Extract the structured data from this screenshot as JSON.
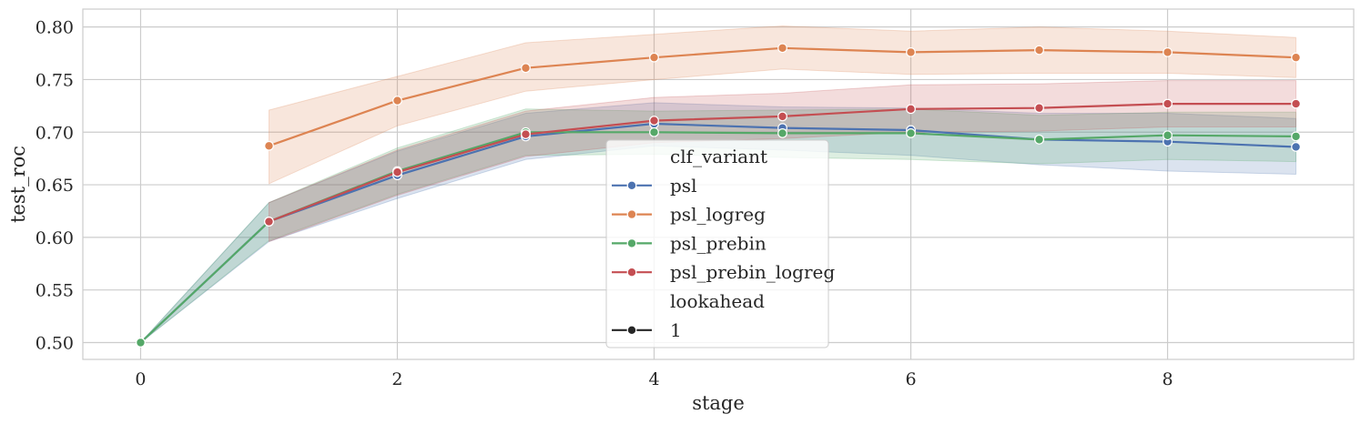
{
  "chart_data": {
    "type": "line",
    "xlabel": "stage",
    "ylabel": "test_roc",
    "xlim": [
      -0.45,
      9.45
    ],
    "ylim": [
      0.484,
      0.817
    ],
    "xticks": [
      0,
      2,
      4,
      6,
      8
    ],
    "xtick_labels": [
      "0",
      "2",
      "4",
      "6",
      "8"
    ],
    "yticks": [
      0.5,
      0.55,
      0.6,
      0.65,
      0.7,
      0.75,
      0.8
    ],
    "ytick_labels": [
      "0.50",
      "0.55",
      "0.60",
      "0.65",
      "0.70",
      "0.75",
      "0.80"
    ],
    "grid": true,
    "legend": {
      "placement": "center",
      "hue_title": "clf_variant",
      "style_title": "lookahead",
      "style_entries": [
        "1"
      ]
    },
    "series": [
      {
        "name": "psl",
        "color": "#4c72b0",
        "x": [
          0,
          1,
          2,
          3,
          4,
          5,
          6,
          7,
          8,
          9
        ],
        "y": [
          0.5,
          0.615,
          0.659,
          0.696,
          0.708,
          0.704,
          0.702,
          0.693,
          0.691,
          0.686
        ],
        "ci_lower": [
          0.5,
          0.596,
          0.637,
          0.674,
          0.687,
          0.683,
          0.678,
          0.669,
          0.663,
          0.66
        ],
        "ci_upper": [
          0.5,
          0.633,
          0.682,
          0.718,
          0.728,
          0.724,
          0.723,
          0.718,
          0.718,
          0.713
        ]
      },
      {
        "name": "psl_logreg",
        "color": "#dd8452",
        "x": [
          1,
          2,
          3,
          4,
          5,
          6,
          7,
          8,
          9
        ],
        "y": [
          0.687,
          0.73,
          0.761,
          0.771,
          0.78,
          0.776,
          0.778,
          0.776,
          0.771
        ],
        "ci_lower": [
          0.651,
          0.706,
          0.739,
          0.75,
          0.76,
          0.755,
          0.756,
          0.756,
          0.752
        ],
        "ci_upper": [
          0.721,
          0.753,
          0.785,
          0.793,
          0.801,
          0.796,
          0.8,
          0.796,
          0.79
        ]
      },
      {
        "name": "psl_prebin",
        "color": "#55a868",
        "x": [
          0,
          1,
          2,
          3,
          4,
          5,
          6,
          7,
          8,
          9
        ],
        "y": [
          0.5,
          0.615,
          0.663,
          0.7,
          0.7,
          0.699,
          0.699,
          0.693,
          0.697,
          0.696
        ],
        "ci_lower": [
          0.5,
          0.597,
          0.641,
          0.678,
          0.679,
          0.676,
          0.674,
          0.67,
          0.674,
          0.672
        ],
        "ci_upper": [
          0.5,
          0.633,
          0.685,
          0.722,
          0.72,
          0.721,
          0.722,
          0.716,
          0.719,
          0.719
        ]
      },
      {
        "name": "psl_prebin_logreg",
        "color": "#c44e52",
        "x": [
          1,
          2,
          3,
          4,
          5,
          6,
          7,
          8,
          9
        ],
        "y": [
          0.615,
          0.662,
          0.698,
          0.711,
          0.715,
          0.722,
          0.723,
          0.727,
          0.727
        ],
        "ci_lower": [
          0.596,
          0.64,
          0.677,
          0.69,
          0.694,
          0.7,
          0.701,
          0.705,
          0.705
        ],
        "ci_upper": [
          0.633,
          0.683,
          0.72,
          0.733,
          0.737,
          0.745,
          0.746,
          0.749,
          0.749
        ]
      }
    ]
  }
}
